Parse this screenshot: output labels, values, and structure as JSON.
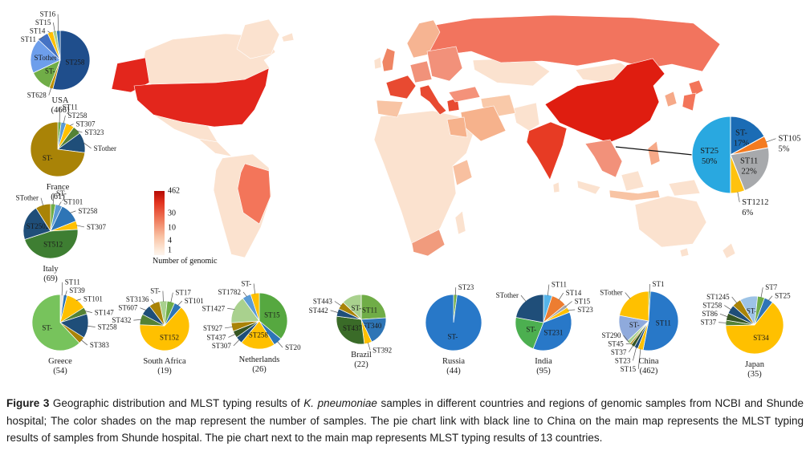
{
  "caption": {
    "figure_label": "Figure 3",
    "text_before_species": " Geographic distribution and MLST typing results of ",
    "species": "K. pneumoniae",
    "text_after_species": " samples in different countries and regions of genomic samples from NCBI and Shunde hospital; The color shades on the map represent the number of samples. The pie chart link with black line to China on the main map represents the MLST typing results of samples from Shunde hospital. The pie chart next to the main map represents MLST typing results of 13 countries."
  },
  "chart_data": [
    {
      "type": "choropleth",
      "id": "world-map",
      "legend": {
        "label": "Number of genomic",
        "ticks": [
          "462",
          "30",
          "10",
          "4",
          "1"
        ]
      },
      "countries": {
        "usa": "#e3261c",
        "alaska": "#e3261c",
        "brazil": "#f3755a",
        "uk": "#ef8564",
        "france": "#e84a31",
        "spain": "#f8c4a4",
        "germany": "#f1927a",
        "italy": "#e84a31",
        "greece": "#e84a31",
        "scandinavia": "#f6b492",
        "east_europe": "#f2917a",
        "russia": "#f2745e",
        "turkey": "#f4927a",
        "iran": "#f9c9a9",
        "saudi": "#f6b28c",
        "egypt": "#f6b28c",
        "east_africa": "#f8c0a0",
        "south_africa": "#f19b7d",
        "india": "#e73b24",
        "china": "#df1d10",
        "indochina": "#f2917a",
        "indonesia": "#f8c4a4",
        "philippines": "#f6a988",
        "korea": "#f6a988",
        "japan": "#f3755a"
      }
    },
    {
      "type": "pie",
      "id": "usa",
      "title": "USA",
      "subtitle": "(466)",
      "slices": [
        {
          "label": "ST258",
          "value": 54,
          "color": "#1f4e8c",
          "inside": true
        },
        {
          "label": "ST628",
          "value": 2,
          "color": "#bf8f00"
        },
        {
          "label": "ST-",
          "value": 12,
          "color": "#70ad47",
          "inside": true
        },
        {
          "label": "STother",
          "value": 19,
          "color": "#6d9eeb",
          "inside": true
        },
        {
          "label": "ST11",
          "value": 6,
          "color": "#4472c4"
        },
        {
          "label": "ST14",
          "value": 3,
          "color": "#ffc000"
        },
        {
          "label": "ST15",
          "value": 2,
          "color": "#a9d18e"
        },
        {
          "label": "ST16",
          "value": 2,
          "color": "#2e75b6"
        }
      ]
    },
    {
      "type": "pie",
      "id": "france",
      "title": "France",
      "subtitle": "(61)",
      "slices": [
        {
          "label": "ST11",
          "value": 2,
          "color": "#70ad47"
        },
        {
          "label": "ST258",
          "value": 3,
          "color": "#5b9bd5"
        },
        {
          "label": "ST307",
          "value": 5,
          "color": "#ffc000"
        },
        {
          "label": "ST323",
          "value": 5,
          "color": "#548235"
        },
        {
          "label": "STother",
          "value": 12,
          "color": "#1f4e79"
        },
        {
          "label": "ST-",
          "value": 73,
          "color": "#a98307",
          "inside": true
        }
      ]
    },
    {
      "type": "pie",
      "id": "italy",
      "title": "Italy",
      "subtitle": "(69)",
      "slices": [
        {
          "label": "ST-",
          "value": 3,
          "color": "#70ad47"
        },
        {
          "label": "ST101",
          "value": 4,
          "color": "#5b9bd5"
        },
        {
          "label": "ST258",
          "value": 12,
          "color": "#2e75b6"
        },
        {
          "label": "ST307",
          "value": 5,
          "color": "#ffc000"
        },
        {
          "label": "ST512",
          "value": 46,
          "color": "#3e7e32",
          "inside": true
        },
        {
          "label": "ST2502",
          "value": 21,
          "color": "#1f4e79",
          "inside": true
        },
        {
          "label": "STother",
          "value": 9,
          "color": "#a98307"
        }
      ]
    },
    {
      "type": "pie",
      "id": "greece",
      "title": "Greece",
      "subtitle": "(54)",
      "slices": [
        {
          "label": "ST11",
          "value": 2,
          "color": "#e7e6e6"
        },
        {
          "label": "ST39",
          "value": 2,
          "color": "#2e75b6"
        },
        {
          "label": "ST101",
          "value": 12,
          "color": "#ffc000"
        },
        {
          "label": "ST147",
          "value": 4,
          "color": "#548235"
        },
        {
          "label": "ST258",
          "value": 14,
          "color": "#1f4e79"
        },
        {
          "label": "ST383",
          "value": 4,
          "color": "#a98307"
        },
        {
          "label": "ST-",
          "value": 62,
          "color": "#77c35c",
          "inside": true
        }
      ]
    },
    {
      "type": "pie",
      "id": "south_africa",
      "title": "South Africa",
      "subtitle": "(19)",
      "slices": [
        {
          "label": "ST-",
          "value": 5,
          "color": "#a9d18e"
        },
        {
          "label": "ST17",
          "value": 5,
          "color": "#70ad47"
        },
        {
          "label": "ST101",
          "value": 5,
          "color": "#2e75b6"
        },
        {
          "label": "ST152",
          "value": 64,
          "color": "#ffc000",
          "inside": true
        },
        {
          "label": "ST432",
          "value": 7,
          "color": "#548235"
        },
        {
          "label": "ST607",
          "value": 7,
          "color": "#1f4e79"
        },
        {
          "label": "ST3136",
          "value": 7,
          "color": "#a98307"
        }
      ]
    },
    {
      "type": "pie",
      "id": "netherlands",
      "title": "Netherlands",
      "subtitle": "(26)",
      "slices": [
        {
          "label": "ST15",
          "value": 36,
          "color": "#56a840",
          "inside": true
        },
        {
          "label": "ST20",
          "value": 5,
          "color": "#2e75b6"
        },
        {
          "label": "ST258",
          "value": 20,
          "color": "#ffc000",
          "inside": true
        },
        {
          "label": "ST307",
          "value": 4,
          "color": "#1f4e79"
        },
        {
          "label": "ST437",
          "value": 4,
          "color": "#375623"
        },
        {
          "label": "ST927",
          "value": 5,
          "color": "#a98307"
        },
        {
          "label": "ST1427",
          "value": 16,
          "color": "#a9d18e"
        },
        {
          "label": "ST1782",
          "value": 5,
          "color": "#5b9bd5"
        },
        {
          "label": "ST-",
          "value": 5,
          "color": "#ffc000"
        }
      ]
    },
    {
      "type": "pie",
      "id": "brazil",
      "title": "Brazil",
      "subtitle": "(22)",
      "slices": [
        {
          "label": "ST11",
          "value": 24,
          "color": "#70ad47",
          "inside": true
        },
        {
          "label": "ST340",
          "value": 19,
          "color": "#2e75b6",
          "inside": true
        },
        {
          "label": "ST392",
          "value": 5,
          "color": "#ffc000"
        },
        {
          "label": "ST437",
          "value": 29,
          "color": "#3a6b28",
          "inside": true
        },
        {
          "label": "ST442",
          "value": 5,
          "color": "#1f4e79"
        },
        {
          "label": "ST443",
          "value": 5,
          "color": "#a98307"
        },
        {
          "label": "ST-",
          "value": 13,
          "color": "#a9d18e",
          "inside": true
        }
      ]
    },
    {
      "type": "pie",
      "id": "russia",
      "title": "Russia",
      "subtitle": "(44)",
      "slices": [
        {
          "label": "ST23",
          "value": 2,
          "color": "#70ad47"
        },
        {
          "label": "ST-",
          "value": 98,
          "color": "#2878c8",
          "inside": true
        }
      ]
    },
    {
      "type": "pie",
      "id": "india",
      "title": "India",
      "subtitle": "(95)",
      "slices": [
        {
          "label": "ST11",
          "value": 5,
          "color": "#56b4e9"
        },
        {
          "label": "ST14",
          "value": 9,
          "color": "#ed7d31"
        },
        {
          "label": "ST15",
          "value": 2,
          "color": "#a6a6a6"
        },
        {
          "label": "ST23",
          "value": 3,
          "color": "#ffc000"
        },
        {
          "label": "ST231",
          "value": 37,
          "color": "#2878c8",
          "inside": true
        },
        {
          "label": "ST-",
          "value": 22,
          "color": "#4caf50",
          "inside": true
        },
        {
          "label": "STother",
          "value": 22,
          "color": "#1f4e79"
        }
      ]
    },
    {
      "type": "pie",
      "id": "china",
      "title": "China",
      "subtitle": "(462)",
      "slices": [
        {
          "label": "ST1",
          "value": 1,
          "color": "#70ad47"
        },
        {
          "label": "ST11",
          "value": 52,
          "color": "#2878c8",
          "inside": true
        },
        {
          "label": "ST15",
          "value": 3,
          "color": "#ffc000"
        },
        {
          "label": "ST23",
          "value": 2,
          "color": "#1f4e79"
        },
        {
          "label": "ST37",
          "value": 2,
          "color": "#375623"
        },
        {
          "label": "ST45",
          "value": 1,
          "color": "#a98307"
        },
        {
          "label": "ST290",
          "value": 2,
          "color": "#a9d18e"
        },
        {
          "label": "ST-",
          "value": 15,
          "color": "#8faadc",
          "inside": true
        },
        {
          "label": "STother",
          "value": 22,
          "color": "#ffc000"
        }
      ]
    },
    {
      "type": "pie",
      "id": "japan",
      "title": "Japan",
      "subtitle": "(35)",
      "slices": [
        {
          "label": "ST-",
          "value": 10,
          "color": "#9dc3e6",
          "inside": true
        },
        {
          "label": "ST7",
          "value": 4,
          "color": "#70ad47"
        },
        {
          "label": "ST25",
          "value": 5,
          "color": "#2e75b6"
        },
        {
          "label": "ST34",
          "value": 64,
          "color": "#ffc000",
          "inside": true
        },
        {
          "label": "ST37",
          "value": 3,
          "color": "#548235"
        },
        {
          "label": "ST86",
          "value": 4,
          "color": "#375623"
        },
        {
          "label": "ST258",
          "value": 5,
          "color": "#1f4e79"
        },
        {
          "label": "ST1245",
          "value": 5,
          "color": "#a98307"
        }
      ]
    },
    {
      "type": "pie",
      "id": "shunde",
      "title": "",
      "subtitle": "",
      "slices": [
        {
          "label": "ST-",
          "pct": "17%",
          "value": 17,
          "color": "#1b6cb5",
          "inside": true
        },
        {
          "label": "ST105",
          "pct": "5%",
          "value": 5,
          "color": "#f47b20"
        },
        {
          "label": "ST11",
          "pct": "22%",
          "value": 22,
          "color": "#a7a9ac",
          "inside": true
        },
        {
          "label": "ST1212",
          "pct": "6%",
          "value": 6,
          "color": "#ffc20e"
        },
        {
          "label": "ST25",
          "pct": "50%",
          "value": 50,
          "color": "#29a8e0",
          "inside": true
        }
      ]
    }
  ]
}
